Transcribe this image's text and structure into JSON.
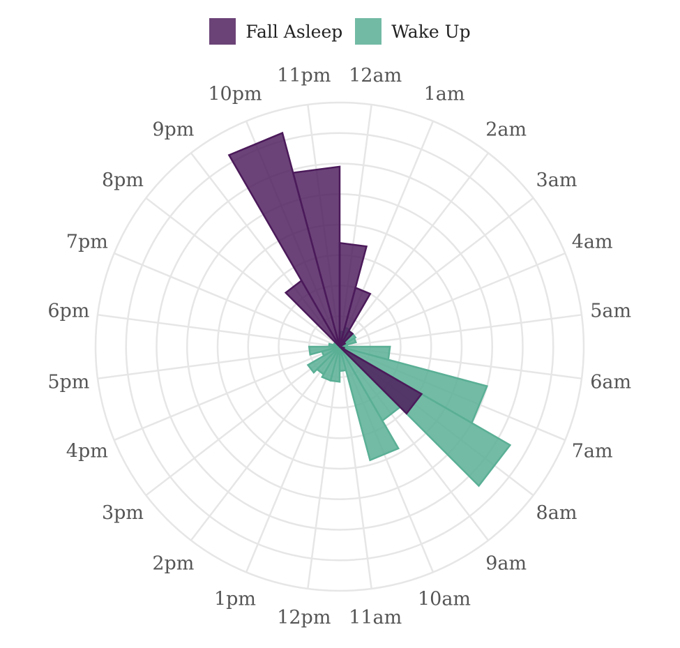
{
  "chart_data": {
    "type": "polar-bar",
    "title": "",
    "categories": [
      "12am",
      "1am",
      "2am",
      "3am",
      "4am",
      "5am",
      "6am",
      "7am",
      "8am",
      "9am",
      "10am",
      "11am",
      "12pm",
      "1pm",
      "2pm",
      "3pm",
      "4pm",
      "5pm",
      "6pm",
      "7pm",
      "8pm",
      "9pm",
      "10pm",
      "11pm"
    ],
    "series": [
      {
        "name": "Fall Asleep",
        "color": "#4b1a5a",
        "fill_opacity": 0.82,
        "values": [
          6.8,
          4.0,
          1.2,
          0.4,
          0,
          0,
          0,
          0.3,
          6.2,
          0,
          0,
          0,
          0,
          0,
          0,
          0,
          0,
          0,
          0,
          0,
          0,
          5.0,
          14.5,
          11.8
        ]
      },
      {
        "name": "Wake Up",
        "color": "#5aaf95",
        "fill_opacity": 0.85,
        "values": [
          1.0,
          1.3,
          1.2,
          1.2,
          1.1,
          0.5,
          3.3,
          10.0,
          12.9,
          5.6,
          7.7,
          1.6,
          2.3,
          2.3,
          2.1,
          2.4,
          1.2,
          2.0,
          0.7,
          0.4,
          0.4,
          0,
          0,
          0
        ]
      }
    ],
    "radial_range": [
      0,
      16
    ],
    "grid_rings": [
      0,
      2,
      4,
      6,
      8,
      10,
      12,
      14,
      16
    ],
    "grid": true,
    "legend_position": "top",
    "clockwise_from_top": true
  }
}
